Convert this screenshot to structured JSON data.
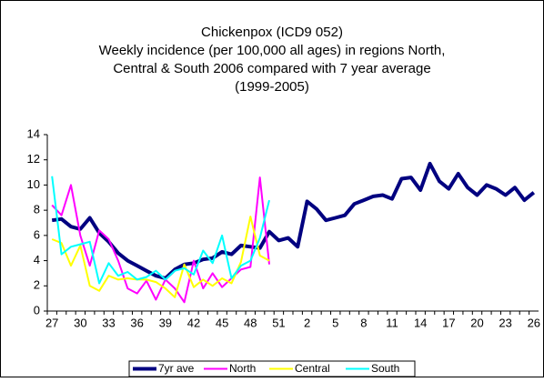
{
  "chart_data": {
    "type": "line",
    "title": [
      "Chickenpox (ICD9 052)",
      "Weekly incidence (per 100,000 all ages) in regions North,",
      "Central & South 2006 compared with 7 year average",
      "(1999-2005)"
    ],
    "categories": [
      "27",
      null,
      null,
      "30",
      null,
      null,
      "33",
      null,
      null,
      "36",
      null,
      null,
      "39",
      null,
      null,
      "42",
      null,
      null,
      "45",
      null,
      null,
      "48",
      null,
      null,
      "51",
      null,
      null,
      "2",
      null,
      null,
      "5",
      null,
      null,
      "8",
      null,
      null,
      "11",
      null,
      null,
      "14",
      null,
      null,
      "17",
      null,
      null,
      "20",
      null,
      null,
      "23",
      null,
      null,
      "26"
    ],
    "series": [
      {
        "name": "7yr ave",
        "color": "#000080",
        "values": [
          7.2,
          7.3,
          6.7,
          6.5,
          7.4,
          6.2,
          5.5,
          4.6,
          4.0,
          3.6,
          3.2,
          2.8,
          2.6,
          3.3,
          3.7,
          3.8,
          4.1,
          4.2,
          4.7,
          4.5,
          5.2,
          5.1,
          5.0,
          6.3,
          5.6,
          5.8,
          5.1,
          8.7,
          8.1,
          7.2,
          7.4,
          7.6,
          8.5,
          8.8,
          9.1,
          9.2,
          8.9,
          10.5,
          10.6,
          9.6,
          11.7,
          10.3,
          9.7,
          10.9,
          9.8,
          9.2,
          10.0,
          9.7,
          9.2,
          9.8,
          8.8,
          9.4
        ]
      },
      {
        "name": "North",
        "color": "#ff00ff",
        "values": [
          8.4,
          7.6,
          10.0,
          6.0,
          3.6,
          6.4,
          5.7,
          4.0,
          1.8,
          1.4,
          2.4,
          0.9,
          2.5,
          1.8,
          0.7,
          4.0,
          1.8,
          3.0,
          1.9,
          2.6,
          3.3,
          3.5,
          10.6,
          3.7,
          null,
          null,
          null,
          null,
          null,
          null,
          null,
          null,
          null,
          null,
          null,
          null,
          null,
          null,
          null,
          null,
          null,
          null,
          null,
          null,
          null,
          null,
          null,
          null,
          null,
          null,
          null,
          null
        ]
      },
      {
        "name": "Central",
        "color": "#ffff00",
        "values": [
          5.7,
          5.4,
          3.6,
          5.2,
          2.0,
          1.6,
          2.8,
          2.5,
          2.6,
          2.5,
          2.5,
          2.3,
          1.8,
          1.1,
          3.7,
          1.9,
          2.5,
          2.0,
          2.6,
          2.2,
          3.9,
          7.5,
          4.4,
          4.0,
          null,
          null,
          null,
          null,
          null,
          null,
          null,
          null,
          null,
          null,
          null,
          null,
          null,
          null,
          null,
          null,
          null,
          null,
          null,
          null,
          null,
          null,
          null,
          null,
          null,
          null,
          null,
          null
        ]
      },
      {
        "name": "South",
        "color": "#00ffff",
        "values": [
          10.7,
          4.5,
          5.1,
          5.3,
          5.5,
          2.2,
          3.8,
          2.8,
          3.1,
          2.5,
          2.7,
          3.2,
          2.5,
          3.2,
          3.4,
          2.9,
          4.8,
          3.8,
          6.0,
          2.6,
          3.6,
          4.0,
          5.8,
          8.8,
          null,
          null,
          null,
          null,
          null,
          null,
          null,
          null,
          null,
          null,
          null,
          null,
          null,
          null,
          null,
          null,
          null,
          null,
          null,
          null,
          null,
          null,
          null,
          null,
          null,
          null,
          null,
          null
        ]
      }
    ],
    "ylim": [
      0,
      14
    ],
    "yticks": [
      0,
      2,
      4,
      6,
      8,
      10,
      12,
      14
    ],
    "grid": false,
    "legend": "bottom"
  }
}
